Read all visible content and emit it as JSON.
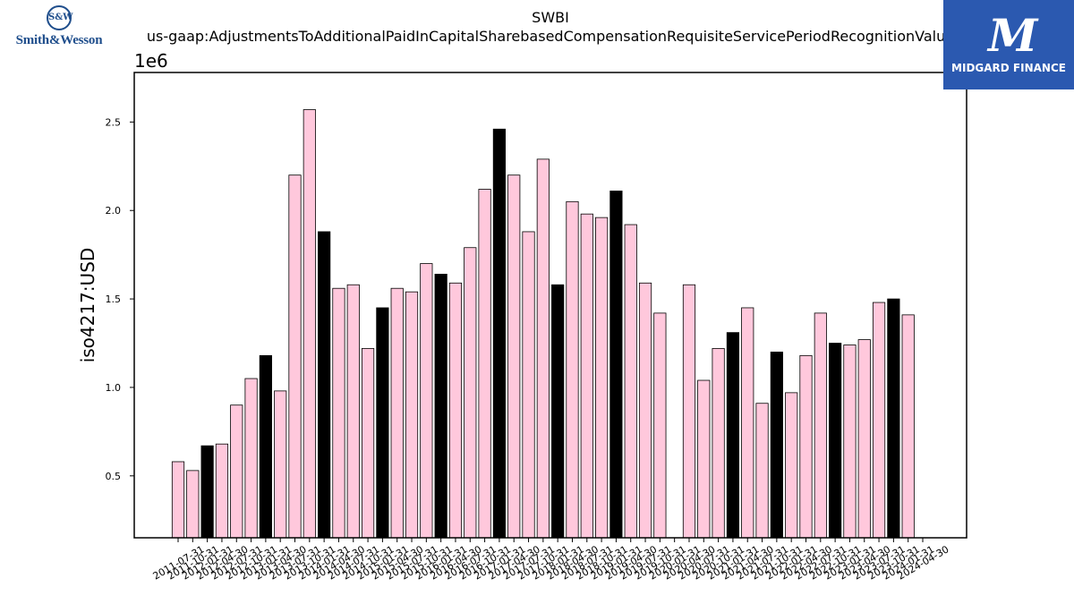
{
  "logos": {
    "left_text": "Smith&Wesson",
    "right_text": "MIDGARD FINANCE"
  },
  "chart_data": {
    "type": "bar",
    "title": "SWBI",
    "subtitle": "us-gaap:AdjustmentsToAdditionalPaidInCapitalSharebasedCompensationRequisiteServicePeriodRecognitionValue",
    "xlabel": "",
    "ylabel": "iso4217:USD",
    "y_scale_label": "1e6",
    "ylim": [
      0.15,
      2.78
    ],
    "y_ticks": [
      0.5,
      1.0,
      1.5,
      2.0,
      2.5
    ],
    "y_tick_labels": [
      "0.5",
      "1.0",
      "1.5",
      "2.0",
      "2.5"
    ],
    "grid": false,
    "colors": {
      "quarter": "#ffc8dc",
      "annual": "#000000",
      "edge": "#000000"
    },
    "categories": [
      "2011-07-31",
      "2011-10-31",
      "2012-01-31",
      "2012-04-30",
      "2012-07-31",
      "2012-10-31",
      "2013-01-31",
      "2013-04-30",
      "2013-07-31",
      "2013-10-31",
      "2014-01-31",
      "2014-04-30",
      "2014-07-31",
      "2014-10-31",
      "2015-01-31",
      "2015-04-30",
      "2015-07-31",
      "2015-10-31",
      "2016-01-31",
      "2016-04-30",
      "2016-07-31",
      "2016-10-31",
      "2017-01-31",
      "2017-04-30",
      "2017-07-31",
      "2017-10-31",
      "2018-01-31",
      "2018-04-30",
      "2018-07-31",
      "2018-10-31",
      "2019-01-31",
      "2019-04-30",
      "2019-07-31",
      "2019-10-31",
      "2020-01-31",
      "2020-04-30",
      "2020-07-31",
      "2020-10-31",
      "2021-01-31",
      "2021-04-30",
      "2021-07-31",
      "2021-10-31",
      "2022-01-31",
      "2022-04-30",
      "2022-07-31",
      "2022-10-31",
      "2023-01-31",
      "2023-04-30",
      "2023-07-31",
      "2023-10-31",
      "2024-01-31",
      "2024-04-30"
    ],
    "values": [
      0.58,
      0.53,
      0.67,
      0.68,
      0.9,
      1.05,
      1.18,
      0.98,
      2.2,
      2.57,
      1.88,
      1.56,
      1.58,
      1.22,
      1.45,
      1.56,
      1.54,
      1.7,
      1.64,
      1.59,
      1.79,
      2.12,
      2.46,
      2.2,
      1.88,
      2.29,
      1.58,
      2.05,
      1.98,
      1.96,
      2.11,
      1.92,
      1.59,
      1.42,
      null,
      1.58,
      1.04,
      1.22,
      1.31,
      1.45,
      0.91,
      1.2,
      0.97,
      1.18,
      1.42,
      1.25,
      1.24,
      1.27,
      1.48,
      1.5,
      1.41,
      null
    ],
    "annual": [
      false,
      false,
      true,
      false,
      false,
      false,
      true,
      false,
      false,
      false,
      true,
      false,
      false,
      false,
      true,
      false,
      false,
      false,
      true,
      false,
      false,
      false,
      true,
      false,
      false,
      false,
      true,
      false,
      false,
      false,
      true,
      false,
      false,
      false,
      false,
      false,
      false,
      false,
      true,
      false,
      false,
      true,
      false,
      false,
      false,
      true,
      false,
      false,
      false,
      true,
      false,
      false
    ]
  }
}
